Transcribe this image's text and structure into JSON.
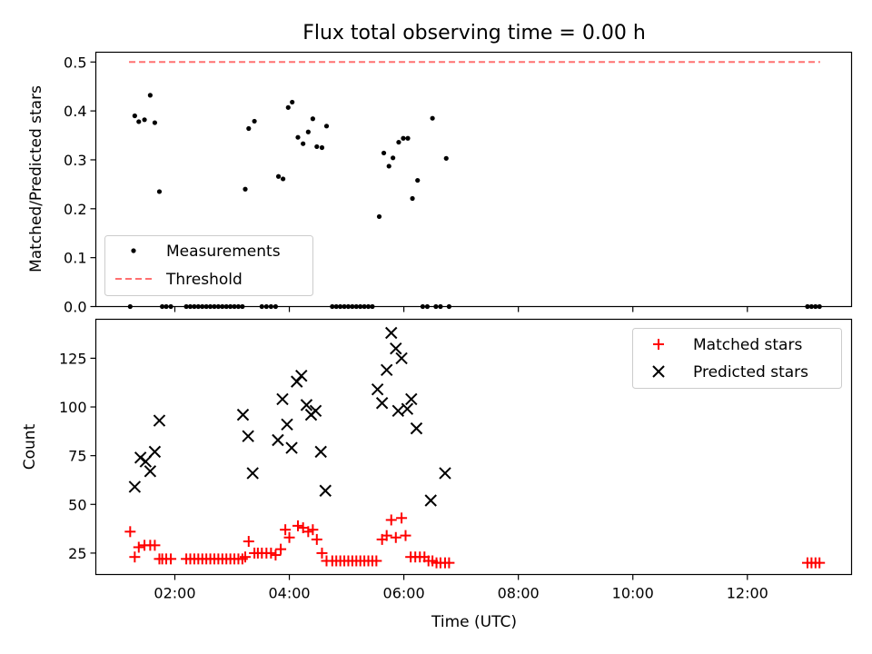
{
  "chart_data": [
    {
      "type": "scatter",
      "title": "Flux total observing time = 0.00 h",
      "xlabel": "",
      "ylabel": "Matched/Predicted stars",
      "ylim": [
        0,
        0.52
      ],
      "xlim_hours": [
        0.62,
        13.82
      ],
      "grid": false,
      "legend_placement": "lower-left",
      "yticks": [
        "0.0",
        "0.1",
        "0.2",
        "0.3",
        "0.4",
        "0.5"
      ],
      "series": [
        {
          "name": "Measurements",
          "color": "#000000",
          "marker": "dot",
          "points": [
            [
              1.3,
              0.39
            ],
            [
              1.37,
              0.378
            ],
            [
              1.47,
              0.382
            ],
            [
              1.57,
              0.432
            ],
            [
              1.65,
              0.376
            ],
            [
              1.73,
              0.235
            ],
            [
              3.23,
              0.24
            ],
            [
              3.29,
              0.364
            ],
            [
              3.39,
              0.379
            ],
            [
              3.81,
              0.266
            ],
            [
              3.89,
              0.261
            ],
            [
              3.98,
              0.407
            ],
            [
              4.05,
              0.418
            ],
            [
              4.15,
              0.346
            ],
            [
              4.24,
              0.333
            ],
            [
              4.33,
              0.357
            ],
            [
              4.41,
              0.384
            ],
            [
              4.48,
              0.327
            ],
            [
              4.57,
              0.325
            ],
            [
              4.65,
              0.369
            ],
            [
              5.57,
              0.184
            ],
            [
              5.65,
              0.314
            ],
            [
              5.74,
              0.287
            ],
            [
              5.81,
              0.304
            ],
            [
              5.91,
              0.336
            ],
            [
              5.99,
              0.344
            ],
            [
              6.07,
              0.344
            ],
            [
              6.15,
              0.221
            ],
            [
              6.24,
              0.258
            ],
            [
              6.5,
              0.385
            ],
            [
              6.74,
              0.303
            ],
            [
              1.22,
              0
            ],
            [
              1.78,
              0
            ],
            [
              1.85,
              0
            ],
            [
              1.93,
              0
            ],
            [
              2.2,
              0
            ],
            [
              2.27,
              0
            ],
            [
              2.34,
              0
            ],
            [
              2.41,
              0
            ],
            [
              2.48,
              0
            ],
            [
              2.55,
              0
            ],
            [
              2.62,
              0
            ],
            [
              2.69,
              0
            ],
            [
              2.76,
              0
            ],
            [
              2.83,
              0
            ],
            [
              2.9,
              0
            ],
            [
              2.97,
              0
            ],
            [
              3.04,
              0
            ],
            [
              3.11,
              0
            ],
            [
              3.18,
              0
            ],
            [
              3.52,
              0
            ],
            [
              3.6,
              0
            ],
            [
              3.68,
              0
            ],
            [
              3.76,
              0
            ],
            [
              4.75,
              0
            ],
            [
              4.82,
              0
            ],
            [
              4.89,
              0
            ],
            [
              4.96,
              0
            ],
            [
              5.03,
              0
            ],
            [
              5.1,
              0
            ],
            [
              5.17,
              0
            ],
            [
              5.24,
              0
            ],
            [
              5.31,
              0
            ],
            [
              5.38,
              0
            ],
            [
              5.45,
              0
            ],
            [
              6.33,
              0
            ],
            [
              6.41,
              0
            ],
            [
              6.56,
              0
            ],
            [
              6.64,
              0
            ],
            [
              6.79,
              0
            ],
            [
              13.05,
              0
            ],
            [
              13.12,
              0
            ],
            [
              13.19,
              0
            ],
            [
              13.26,
              0
            ]
          ]
        },
        {
          "name": "Threshold",
          "color": "#ff7070",
          "style": "dashed",
          "points": [
            [
              1.2,
              0.5
            ],
            [
              13.27,
              0.5
            ]
          ]
        }
      ]
    },
    {
      "type": "scatter",
      "title": "",
      "xlabel": "Time (UTC)",
      "ylabel": "Count",
      "ylim": [
        14,
        145
      ],
      "xlim_hours": [
        0.62,
        13.82
      ],
      "grid": false,
      "legend_placement": "top-right",
      "yticks": [
        "25",
        "50",
        "75",
        "100",
        "125"
      ],
      "xticks": [
        "02:00",
        "04:00",
        "06:00",
        "08:00",
        "10:00",
        "12:00"
      ],
      "series": [
        {
          "name": "Matched stars",
          "color": "#ff0000",
          "marker": "plus",
          "points": [
            [
              1.22,
              36
            ],
            [
              1.3,
              23
            ],
            [
              1.37,
              28
            ],
            [
              1.47,
              29
            ],
            [
              1.57,
              29
            ],
            [
              1.65,
              29
            ],
            [
              1.73,
              22
            ],
            [
              1.78,
              22
            ],
            [
              1.85,
              22
            ],
            [
              1.93,
              22
            ],
            [
              2.2,
              22
            ],
            [
              2.27,
              22
            ],
            [
              2.34,
              22
            ],
            [
              2.41,
              22
            ],
            [
              2.48,
              22
            ],
            [
              2.55,
              22
            ],
            [
              2.62,
              22
            ],
            [
              2.69,
              22
            ],
            [
              2.76,
              22
            ],
            [
              2.83,
              22
            ],
            [
              2.9,
              22
            ],
            [
              2.97,
              22
            ],
            [
              3.04,
              22
            ],
            [
              3.11,
              22
            ],
            [
              3.18,
              22
            ],
            [
              3.23,
              23
            ],
            [
              3.29,
              31
            ],
            [
              3.39,
              25
            ],
            [
              3.45,
              25
            ],
            [
              3.52,
              25
            ],
            [
              3.6,
              25
            ],
            [
              3.68,
              25
            ],
            [
              3.76,
              24
            ],
            [
              3.85,
              27
            ],
            [
              3.93,
              37
            ],
            [
              4.0,
              33
            ],
            [
              4.15,
              39
            ],
            [
              4.24,
              38
            ],
            [
              4.33,
              36
            ],
            [
              4.41,
              37
            ],
            [
              4.48,
              32
            ],
            [
              4.57,
              25
            ],
            [
              4.65,
              21
            ],
            [
              4.75,
              21
            ],
            [
              4.82,
              21
            ],
            [
              4.89,
              21
            ],
            [
              4.96,
              21
            ],
            [
              5.03,
              21
            ],
            [
              5.1,
              21
            ],
            [
              5.17,
              21
            ],
            [
              5.24,
              21
            ],
            [
              5.31,
              21
            ],
            [
              5.38,
              21
            ],
            [
              5.45,
              21
            ],
            [
              5.52,
              21
            ],
            [
              5.62,
              32
            ],
            [
              5.7,
              34
            ],
            [
              5.78,
              42
            ],
            [
              5.86,
              33
            ],
            [
              5.96,
              43
            ],
            [
              6.03,
              34
            ],
            [
              6.12,
              23
            ],
            [
              6.2,
              23
            ],
            [
              6.28,
              23
            ],
            [
              6.36,
              23
            ],
            [
              6.43,
              21
            ],
            [
              6.5,
              21
            ],
            [
              6.57,
              20
            ],
            [
              6.64,
              20
            ],
            [
              6.72,
              20
            ],
            [
              6.79,
              20
            ],
            [
              13.05,
              20
            ],
            [
              13.12,
              20
            ],
            [
              13.19,
              20
            ],
            [
              13.26,
              20
            ]
          ]
        },
        {
          "name": "Predicted stars",
          "color": "#000000",
          "marker": "x",
          "points": [
            [
              1.3,
              59
            ],
            [
              1.4,
              74
            ],
            [
              1.49,
              72
            ],
            [
              1.57,
              67
            ],
            [
              1.65,
              77
            ],
            [
              1.73,
              93
            ],
            [
              3.19,
              96
            ],
            [
              3.28,
              85
            ],
            [
              3.36,
              66
            ],
            [
              3.8,
              83
            ],
            [
              3.88,
              104
            ],
            [
              3.96,
              91
            ],
            [
              4.04,
              79
            ],
            [
              4.13,
              113
            ],
            [
              4.21,
              116
            ],
            [
              4.3,
              101
            ],
            [
              4.38,
              96
            ],
            [
              4.46,
              98
            ],
            [
              4.55,
              77
            ],
            [
              4.63,
              57
            ],
            [
              5.54,
              109
            ],
            [
              5.62,
              102
            ],
            [
              5.7,
              119
            ],
            [
              5.78,
              138
            ],
            [
              5.86,
              130
            ],
            [
              5.9,
              98
            ],
            [
              5.96,
              125
            ],
            [
              6.06,
              99
            ],
            [
              6.13,
              104
            ],
            [
              6.22,
              89
            ],
            [
              6.47,
              52
            ],
            [
              6.72,
              66
            ]
          ]
        }
      ]
    }
  ]
}
